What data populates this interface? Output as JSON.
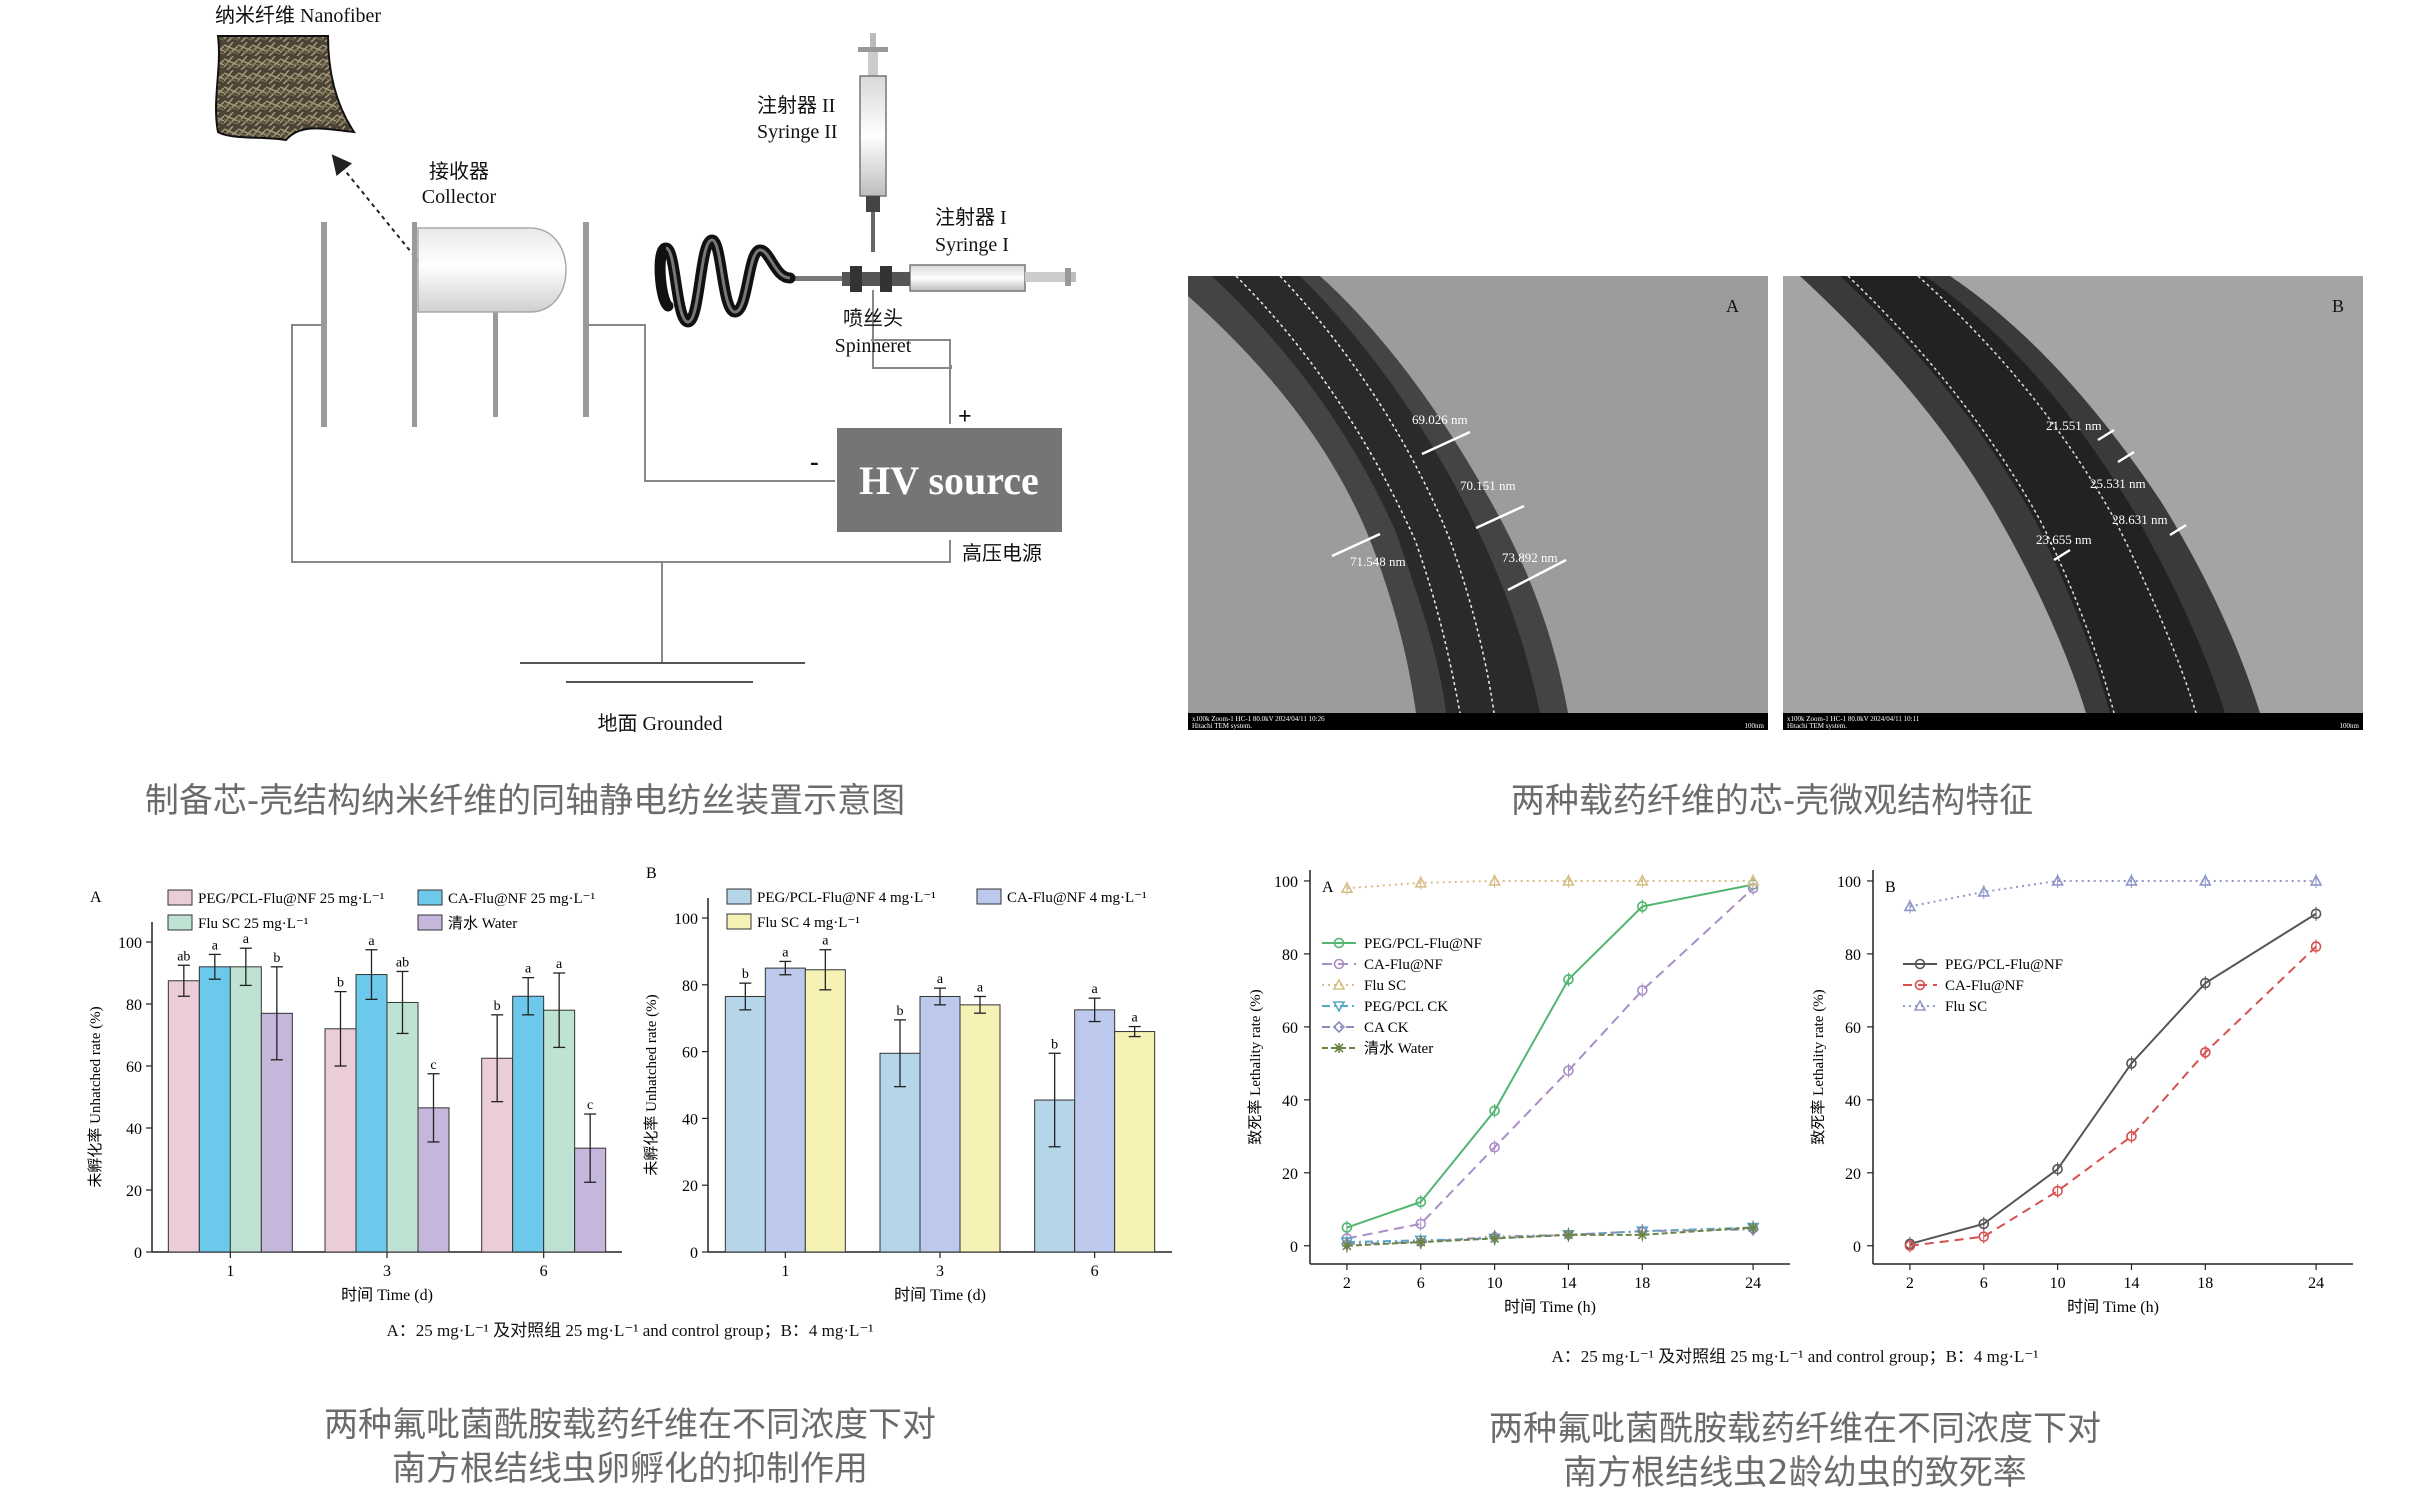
{
  "apparatus": {
    "nanofiber": "纳米纤维 Nanofiber",
    "collector_cn": "接收器",
    "collector_en": "Collector",
    "syringe2_cn": "注射器 II",
    "syringe2_en": "Syringe II",
    "syringe1_cn": "注射器 I",
    "syringe1_en": "Syringe I",
    "spinneret_cn": "喷丝头",
    "spinneret_en": "Spinneret",
    "plus": "+",
    "minus": "-",
    "hv_source": "HV source",
    "hv_cn": "高压电源",
    "ground": "地面 Grounded",
    "caption": "制备芯-壳结构纳米纤维的同轴静电纺丝装置示意图"
  },
  "tem": {
    "caption": "两种载药纤维的芯-壳微观结构特征",
    "panel_a": {
      "label": "A",
      "measurements": [
        "69.026 nm",
        "70.151 nm",
        "71.548 nm",
        "73.892 nm"
      ],
      "footer_left": "x100k Zoom-1 HC-1 80.0kV 2024/04/11 10:26",
      "footer_left2": "Hitachi TEM system.",
      "footer_right": "100nm"
    },
    "panel_b": {
      "label": "B",
      "measurements": [
        "21.551 nm",
        "25.531 nm",
        "28.631 nm",
        "23.655 nm"
      ],
      "footer_left": "x100k Zoom-1 HC-1 80.0kV 2024/04/11 10:11",
      "footer_left2": "Hitachi TEM system.",
      "footer_right": "100nm"
    }
  },
  "hatch_figure": {
    "caption_line1": "两种氟吡菌酰胺载药纤维在不同浓度下对",
    "caption_line2": "南方根结线虫卵孵化的抑制作用",
    "footnote": "A：25 mg·L⁻¹ 及对照组 25 mg·L⁻¹ and control group；B：4 mg·L⁻¹"
  },
  "lethal_figure": {
    "caption_line1": "两种氟吡菌酰胺载药纤维在不同浓度下对",
    "caption_line2": "南方根结线虫2龄幼虫的致死率",
    "footnote": "A：25 mg·L⁻¹ 及对照组 25 mg·L⁻¹ and control group；B：4 mg·L⁻¹"
  },
  "chart_data": [
    {
      "id": "hatch_A",
      "type": "bar",
      "panel": "A",
      "xlabel": "时间 Time (d)",
      "ylabel": "未孵化率 Unhatched rate (%)",
      "ylim": [
        0,
        100
      ],
      "yticks": [
        0,
        20,
        40,
        60,
        80,
        100
      ],
      "categories": [
        "1",
        "3",
        "6"
      ],
      "legend_position": "top",
      "series": [
        {
          "name": "PEG/PCL-Flu@NF 25 mg·L⁻¹",
          "color": "#ebcdd9",
          "values": [
            87.5,
            72,
            62.5
          ],
          "errors": [
            5,
            12,
            14
          ],
          "letters": [
            "ab",
            "b",
            "b"
          ]
        },
        {
          "name": "CA-Flu@NF 25 mg·L⁻¹",
          "color": "#6dc9ec",
          "values": [
            92,
            89.5,
            82.5
          ],
          "errors": [
            4,
            8,
            6
          ],
          "letters": [
            "a",
            "a",
            "a"
          ]
        },
        {
          "name": "Flu SC 25 mg·L⁻¹",
          "color": "#bfe3d3",
          "values": [
            92,
            80.5,
            78
          ],
          "errors": [
            6,
            10,
            12
          ],
          "letters": [
            "a",
            "ab",
            "a"
          ]
        },
        {
          "name": "清水 Water",
          "color": "#c5b6dc",
          "values": [
            77,
            46.5,
            33.5
          ],
          "errors": [
            15,
            11,
            11
          ],
          "letters": [
            "b",
            "c",
            "c"
          ]
        }
      ]
    },
    {
      "id": "hatch_B",
      "type": "bar",
      "panel": "B",
      "xlabel": "时间 Time (d)",
      "ylabel": "未孵化率 Unhatched rate (%)",
      "ylim": [
        0,
        100
      ],
      "yticks": [
        0,
        20,
        40,
        60,
        80,
        100
      ],
      "categories": [
        "1",
        "3",
        "6"
      ],
      "legend_position": "top",
      "series": [
        {
          "name": "PEG/PCL-Flu@NF 4 mg·L⁻¹",
          "color": "#b5d5e8",
          "values": [
            76.5,
            59.5,
            45.5
          ],
          "errors": [
            4,
            10,
            14
          ],
          "letters": [
            "b",
            "b",
            "b"
          ]
        },
        {
          "name": "CA-Flu@NF 4 mg·L⁻¹",
          "color": "#bcc9ec",
          "values": [
            85,
            76.5,
            72.5
          ],
          "errors": [
            2,
            2.5,
            3.5
          ],
          "letters": [
            "a",
            "a",
            "a"
          ]
        },
        {
          "name": "Flu SC 4 mg·L⁻¹",
          "color": "#f6f1b4",
          "values": [
            84.5,
            74,
            66
          ],
          "errors": [
            6,
            2.5,
            1.5
          ],
          "letters": [
            "a",
            "a",
            "a"
          ]
        }
      ]
    },
    {
      "id": "lethal_A",
      "type": "line",
      "panel": "A",
      "xlabel": "时间 Time (h)",
      "ylabel": "致死率 Lethality rate (%)",
      "ylim": [
        -5,
        103
      ],
      "yticks": [
        0,
        20,
        40,
        60,
        80,
        100
      ],
      "x": [
        2,
        6,
        10,
        14,
        18,
        24
      ],
      "legend_position": "upper-left",
      "series": [
        {
          "name": "PEG/PCL-Flu@NF",
          "color": "#52b571",
          "dash": "",
          "marker": "circle",
          "values": [
            5,
            12,
            37,
            73,
            93,
            99
          ]
        },
        {
          "name": "CA-Flu@NF",
          "color": "#a98ec7",
          "dash": "10,6",
          "marker": "circle",
          "values": [
            2,
            6,
            27,
            48,
            70,
            98
          ]
        },
        {
          "name": "Flu SC",
          "color": "#d6bf86",
          "dash": "2,4",
          "marker": "triangle",
          "values": [
            98,
            99.5,
            100,
            100,
            100,
            100
          ]
        },
        {
          "name": "PEG/PCL CK",
          "color": "#58a8c9",
          "dash": "8,4,2,4",
          "marker": "triangle-down",
          "values": [
            1,
            1.5,
            2,
            3,
            4,
            5
          ]
        },
        {
          "name": "CA CK",
          "color": "#8a8bb8",
          "dash": "8,4,2,4,2,4",
          "marker": "diamond",
          "values": [
            0.5,
            1,
            2.5,
            3,
            4,
            4.5
          ]
        },
        {
          "name": "清水 Water",
          "color": "#6c8545",
          "dash": "6,3",
          "marker": "star",
          "values": [
            0,
            1,
            2,
            3,
            3,
            5
          ]
        }
      ]
    },
    {
      "id": "lethal_B",
      "type": "line",
      "panel": "B",
      "xlabel": "时间 Time (h)",
      "ylabel": "致死率 Lethality rate (%)",
      "ylim": [
        -5,
        103
      ],
      "yticks": [
        0,
        20,
        40,
        60,
        80,
        100
      ],
      "x": [
        2,
        6,
        10,
        14,
        18,
        24
      ],
      "legend_position": "upper-left",
      "series": [
        {
          "name": "PEG/PCL-Flu@NF",
          "color": "#555555",
          "dash": "",
          "marker": "circle",
          "values": [
            0.5,
            6,
            21,
            50,
            72,
            91
          ]
        },
        {
          "name": "CA-Flu@NF",
          "color": "#d65050",
          "dash": "9,6",
          "marker": "circle",
          "values": [
            0,
            2.5,
            15,
            30,
            53,
            82
          ]
        },
        {
          "name": "Flu SC",
          "color": "#8f97cc",
          "dash": "2,4",
          "marker": "triangle",
          "values": [
            93,
            97,
            100,
            100,
            100,
            100
          ]
        }
      ]
    }
  ]
}
